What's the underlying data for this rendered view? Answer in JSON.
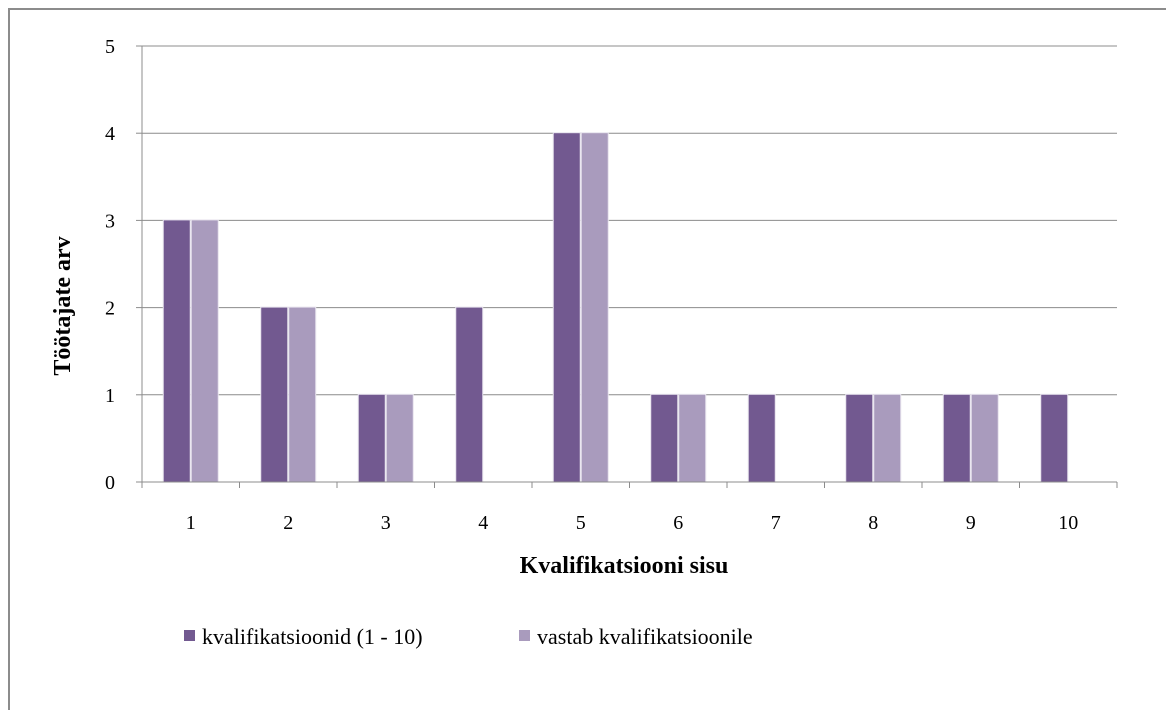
{
  "chart_data": {
    "type": "bar",
    "categories": [
      "1",
      "2",
      "3",
      "4",
      "5",
      "6",
      "7",
      "8",
      "9",
      "10"
    ],
    "series": [
      {
        "name": "kvalifikatsioonid (1 - 10)",
        "values": [
          3,
          2,
          1,
          2,
          4,
          1,
          1,
          1,
          1,
          1
        ]
      },
      {
        "name": "vastab kvalifikatsioonile",
        "values": [
          3,
          2,
          1,
          0,
          4,
          1,
          0,
          1,
          1,
          0
        ]
      }
    ],
    "xlabel": "Kvalifikatsiooni sisu",
    "ylabel": "Töötajate arv",
    "ylim": [
      0,
      5
    ],
    "yticks": [
      "0",
      "1",
      "2",
      "3",
      "4",
      "5"
    ],
    "grid": true,
    "legend_position": "bottom-left"
  },
  "colors": {
    "series1": "#725990",
    "series2": "#a99bbd",
    "grid": "#8c8c8c",
    "frame": "#8c8c8c"
  }
}
